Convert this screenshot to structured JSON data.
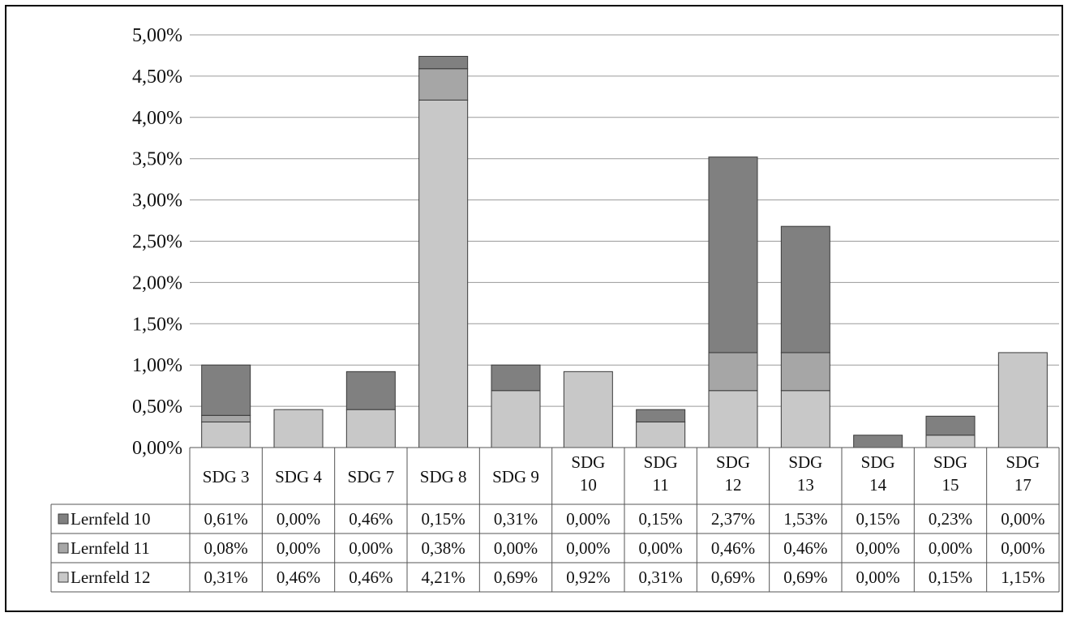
{
  "chart_data": {
    "type": "bar",
    "stacked": true,
    "title": "",
    "xlabel": "",
    "ylabel": "",
    "ylim": [
      0,
      5
    ],
    "y_ticks": [
      0,
      0.5,
      1.0,
      1.5,
      2.0,
      2.5,
      3.0,
      3.5,
      4.0,
      4.5,
      5.0
    ],
    "y_tick_labels": [
      "0,00%",
      "0,50%",
      "1,00%",
      "1,50%",
      "2,00%",
      "2,50%",
      "3,00%",
      "3,50%",
      "4,00%",
      "4,50%",
      "5,00%"
    ],
    "grid": true,
    "legend": "data-table-left",
    "categories": [
      [
        "SDG 3"
      ],
      [
        "SDG 4"
      ],
      [
        "SDG 7"
      ],
      [
        "SDG 8"
      ],
      [
        "SDG 9"
      ],
      [
        "SDG",
        "10"
      ],
      [
        "SDG",
        "11"
      ],
      [
        "SDG",
        "12"
      ],
      [
        "SDG",
        "13"
      ],
      [
        "SDG",
        "14"
      ],
      [
        "SDG",
        "15"
      ],
      [
        "SDG",
        "17"
      ]
    ],
    "series": [
      {
        "name": "Lernfeld 10",
        "color": "#808080",
        "values": [
          0.61,
          0.0,
          0.46,
          0.15,
          0.31,
          0.0,
          0.15,
          2.37,
          1.53,
          0.15,
          0.23,
          0.0
        ],
        "labels": [
          "0,61%",
          "0,00%",
          "0,46%",
          "0,15%",
          "0,31%",
          "0,00%",
          "0,15%",
          "2,37%",
          "1,53%",
          "0,15%",
          "0,23%",
          "0,00%"
        ]
      },
      {
        "name": "Lernfeld 11",
        "color": "#a6a6a6",
        "values": [
          0.08,
          0.0,
          0.0,
          0.38,
          0.0,
          0.0,
          0.0,
          0.46,
          0.46,
          0.0,
          0.0,
          0.0
        ],
        "labels": [
          "0,08%",
          "0,00%",
          "0,00%",
          "0,38%",
          "0,00%",
          "0,00%",
          "0,00%",
          "0,46%",
          "0,46%",
          "0,00%",
          "0,00%",
          "0,00%"
        ]
      },
      {
        "name": "Lernfeld 12",
        "color": "#c8c8c8",
        "values": [
          0.31,
          0.46,
          0.46,
          4.21,
          0.69,
          0.92,
          0.31,
          0.69,
          0.69,
          0.0,
          0.15,
          1.15
        ],
        "labels": [
          "0,31%",
          "0,46%",
          "0,46%",
          "4,21%",
          "0,69%",
          "0,92%",
          "0,31%",
          "0,69%",
          "0,69%",
          "0,00%",
          "0,15%",
          "1,15%"
        ]
      }
    ],
    "stack_order_bottom_to_top": [
      "Lernfeld 12",
      "Lernfeld 11",
      "Lernfeld 10"
    ]
  }
}
